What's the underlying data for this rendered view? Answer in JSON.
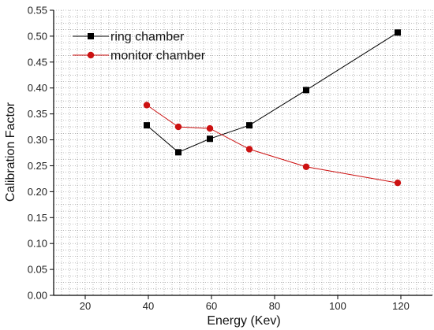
{
  "chart_data": {
    "type": "line",
    "xlabel": "Energy (Kev)",
    "ylabel": "Calibration Factor",
    "xlim": [
      10,
      130
    ],
    "ylim": [
      0,
      0.55
    ],
    "x_ticks": [
      20,
      40,
      60,
      80,
      100,
      120
    ],
    "y_ticks": [
      0.0,
      0.05,
      0.1,
      0.15,
      0.2,
      0.25,
      0.3,
      0.35,
      0.4,
      0.45,
      0.5,
      0.55
    ],
    "x_tick_labels": [
      "20",
      "40",
      "60",
      "80",
      "100",
      "120"
    ],
    "y_tick_labels": [
      "0.00",
      "0.05",
      "0.10",
      "0.15",
      "0.20",
      "0.25",
      "0.30",
      "0.35",
      "0.40",
      "0.45",
      "0.50",
      "0.55"
    ],
    "grid": true,
    "grid_style": "dotted",
    "legend_position": "top-left",
    "series": [
      {
        "name": "ring chamber",
        "color": "#000000",
        "marker": "square",
        "x": [
          39.5,
          49.5,
          59.5,
          72,
          90,
          119
        ],
        "y": [
          0.328,
          0.276,
          0.302,
          0.328,
          0.396,
          0.507
        ]
      },
      {
        "name": "monitor chamber",
        "color": "#cc1111",
        "marker": "circle",
        "x": [
          39.5,
          49.5,
          59.5,
          72,
          90,
          119
        ],
        "y": [
          0.367,
          0.325,
          0.322,
          0.282,
          0.248,
          0.217
        ]
      }
    ]
  }
}
